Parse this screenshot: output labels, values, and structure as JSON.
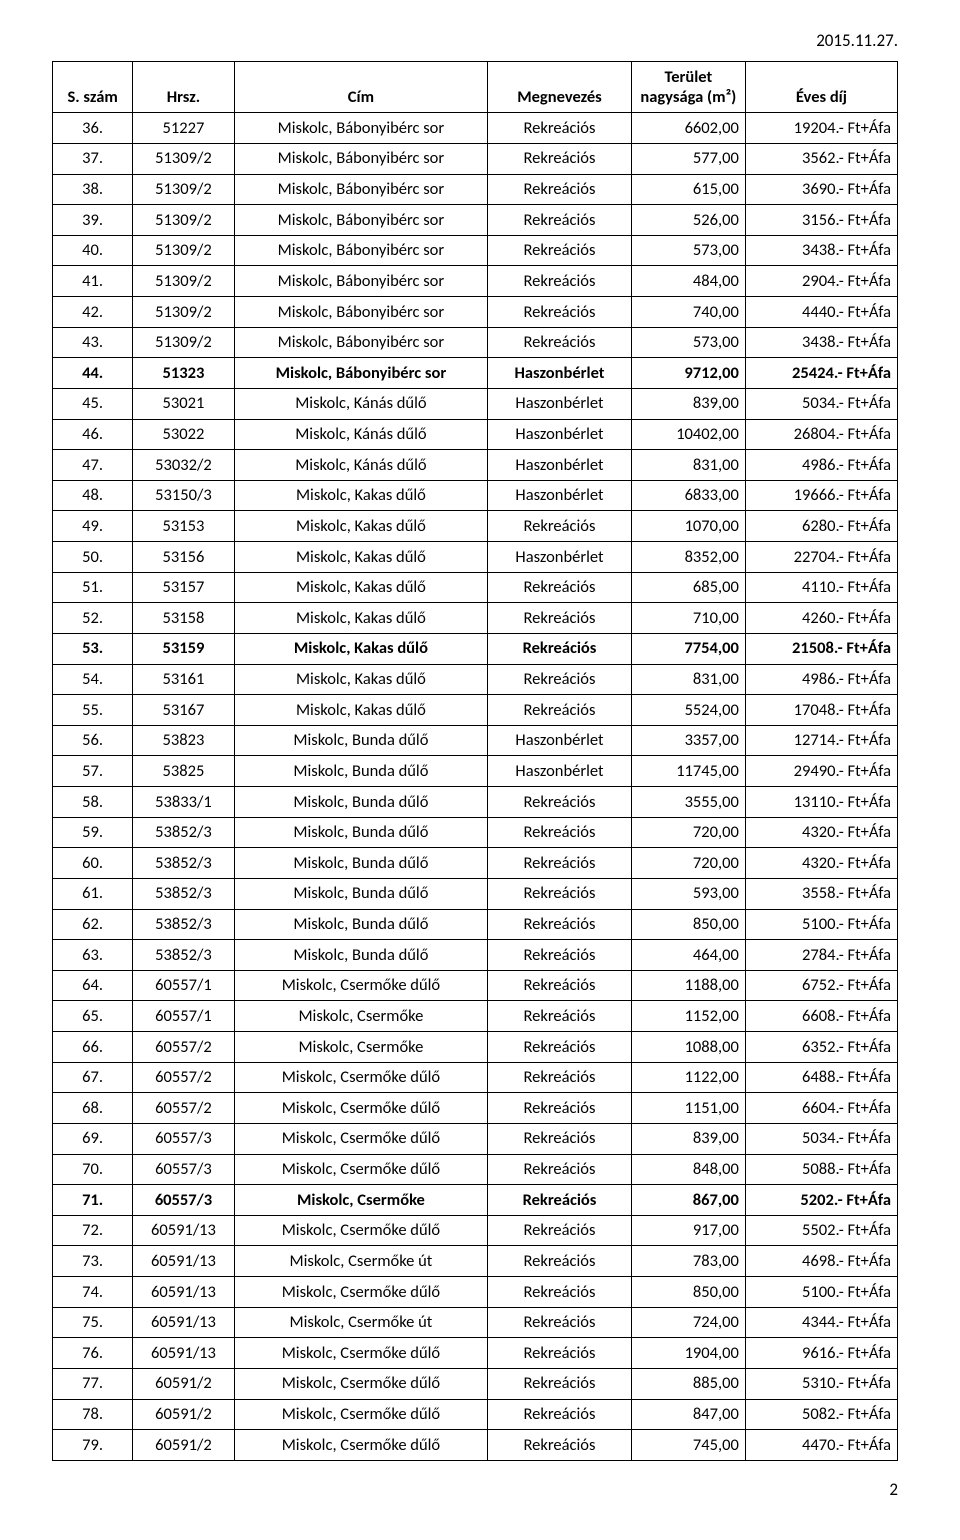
{
  "date_header": "2015.11.27.",
  "page_number": "2",
  "columns": [
    "S. szám",
    "Hrsz.",
    "Cím",
    "Megnevezés",
    "Terület nagysága (m²)",
    "Éves díj"
  ],
  "col_align": [
    "center",
    "center",
    "center",
    "center",
    "right",
    "right"
  ],
  "bold_rows": [
    44,
    53,
    71
  ],
  "rows": [
    [
      "36.",
      "51227",
      "Miskolc, Bábonyibérc sor",
      "Rekreációs",
      "6602,00",
      "19204.- Ft+Áfa"
    ],
    [
      "37.",
      "51309/2",
      "Miskolc, Bábonyibérc sor",
      "Rekreációs",
      "577,00",
      "3562.- Ft+Áfa"
    ],
    [
      "38.",
      "51309/2",
      "Miskolc, Bábonyibérc sor",
      "Rekreációs",
      "615,00",
      "3690.- Ft+Áfa"
    ],
    [
      "39.",
      "51309/2",
      "Miskolc, Bábonyibérc sor",
      "Rekreációs",
      "526,00",
      "3156.- Ft+Áfa"
    ],
    [
      "40.",
      "51309/2",
      "Miskolc, Bábonyibérc sor",
      "Rekreációs",
      "573,00",
      "3438.- Ft+Áfa"
    ],
    [
      "41.",
      "51309/2",
      "Miskolc, Bábonyibérc sor",
      "Rekreációs",
      "484,00",
      "2904.- Ft+Áfa"
    ],
    [
      "42.",
      "51309/2",
      "Miskolc, Bábonyibérc sor",
      "Rekreációs",
      "740,00",
      "4440.- Ft+Áfa"
    ],
    [
      "43.",
      "51309/2",
      "Miskolc, Bábonyibérc sor",
      "Rekreációs",
      "573,00",
      "3438.- Ft+Áfa"
    ],
    [
      "44.",
      "51323",
      "Miskolc, Bábonyibérc sor",
      "Haszonbérlet",
      "9712,00",
      "25424.- Ft+Áfa"
    ],
    [
      "45.",
      "53021",
      "Miskolc, Kánás dűlő",
      "Haszonbérlet",
      "839,00",
      "5034.- Ft+Áfa"
    ],
    [
      "46.",
      "53022",
      "Miskolc, Kánás dűlő",
      "Haszonbérlet",
      "10402,00",
      "26804.- Ft+Áfa"
    ],
    [
      "47.",
      "53032/2",
      "Miskolc, Kánás dűlő",
      "Haszonbérlet",
      "831,00",
      "4986.- Ft+Áfa"
    ],
    [
      "48.",
      "53150/3",
      "Miskolc, Kakas dűlő",
      "Haszonbérlet",
      "6833,00",
      "19666.- Ft+Áfa"
    ],
    [
      "49.",
      "53153",
      "Miskolc, Kakas dűlő",
      "Rekreációs",
      "1070,00",
      "6280.- Ft+Áfa"
    ],
    [
      "50.",
      "53156",
      "Miskolc, Kakas dűlő",
      "Haszonbérlet",
      "8352,00",
      "22704.- Ft+Áfa"
    ],
    [
      "51.",
      "53157",
      "Miskolc, Kakas dűlő",
      "Rekreációs",
      "685,00",
      "4110.- Ft+Áfa"
    ],
    [
      "52.",
      "53158",
      "Miskolc, Kakas dűlő",
      "Rekreációs",
      "710,00",
      "4260.- Ft+Áfa"
    ],
    [
      "53.",
      "53159",
      "Miskolc, Kakas dűlő",
      "Rekreációs",
      "7754,00",
      "21508.- Ft+Áfa"
    ],
    [
      "54.",
      "53161",
      "Miskolc, Kakas dűlő",
      "Rekreációs",
      "831,00",
      "4986.- Ft+Áfa"
    ],
    [
      "55.",
      "53167",
      "Miskolc, Kakas dűlő",
      "Rekreációs",
      "5524,00",
      "17048.- Ft+Áfa"
    ],
    [
      "56.",
      "53823",
      "Miskolc, Bunda dűlő",
      "Haszonbérlet",
      "3357,00",
      "12714.- Ft+Áfa"
    ],
    [
      "57.",
      "53825",
      "Miskolc, Bunda dűlő",
      "Haszonbérlet",
      "11745,00",
      "29490.- Ft+Áfa"
    ],
    [
      "58.",
      "53833/1",
      "Miskolc, Bunda dűlő",
      "Rekreációs",
      "3555,00",
      "13110.- Ft+Áfa"
    ],
    [
      "59.",
      "53852/3",
      "Miskolc, Bunda dűlő",
      "Rekreációs",
      "720,00",
      "4320.- Ft+Áfa"
    ],
    [
      "60.",
      "53852/3",
      "Miskolc, Bunda dűlő",
      "Rekreációs",
      "720,00",
      "4320.- Ft+Áfa"
    ],
    [
      "61.",
      "53852/3",
      "Miskolc, Bunda dűlő",
      "Rekreációs",
      "593,00",
      "3558.- Ft+Áfa"
    ],
    [
      "62.",
      "53852/3",
      "Miskolc, Bunda dűlő",
      "Rekreációs",
      "850,00",
      "5100.- Ft+Áfa"
    ],
    [
      "63.",
      "53852/3",
      "Miskolc, Bunda dűlő",
      "Rekreációs",
      "464,00",
      "2784.- Ft+Áfa"
    ],
    [
      "64.",
      "60557/1",
      "Miskolc, Csermőke dűlő",
      "Rekreációs",
      "1188,00",
      "6752.- Ft+Áfa"
    ],
    [
      "65.",
      "60557/1",
      "Miskolc, Csermőke",
      "Rekreációs",
      "1152,00",
      "6608.- Ft+Áfa"
    ],
    [
      "66.",
      "60557/2",
      "Miskolc, Csermőke",
      "Rekreációs",
      "1088,00",
      "6352.- Ft+Áfa"
    ],
    [
      "67.",
      "60557/2",
      "Miskolc, Csermőke dűlő",
      "Rekreációs",
      "1122,00",
      "6488.- Ft+Áfa"
    ],
    [
      "68.",
      "60557/2",
      "Miskolc, Csermőke dűlő",
      "Rekreációs",
      "1151,00",
      "6604.- Ft+Áfa"
    ],
    [
      "69.",
      "60557/3",
      "Miskolc, Csermőke dűlő",
      "Rekreációs",
      "839,00",
      "5034.- Ft+Áfa"
    ],
    [
      "70.",
      "60557/3",
      "Miskolc, Csermőke dűlő",
      "Rekreációs",
      "848,00",
      "5088.- Ft+Áfa"
    ],
    [
      "71.",
      "60557/3",
      "Miskolc, Csermőke",
      "Rekreációs",
      "867,00",
      "5202.- Ft+Áfa"
    ],
    [
      "72.",
      "60591/13",
      "Miskolc, Csermőke dűlő",
      "Rekreációs",
      "917,00",
      "5502.- Ft+Áfa"
    ],
    [
      "73.",
      "60591/13",
      "Miskolc, Csermőke út",
      "Rekreációs",
      "783,00",
      "4698.- Ft+Áfa"
    ],
    [
      "74.",
      "60591/13",
      "Miskolc, Csermőke dűlő",
      "Rekreációs",
      "850,00",
      "5100.- Ft+Áfa"
    ],
    [
      "75.",
      "60591/13",
      "Miskolc, Csermőke út",
      "Rekreációs",
      "724,00",
      "4344.- Ft+Áfa"
    ],
    [
      "76.",
      "60591/13",
      "Miskolc, Csermőke dűlő",
      "Rekreációs",
      "1904,00",
      "9616.- Ft+Áfa"
    ],
    [
      "77.",
      "60591/2",
      "Miskolc, Csermőke dűlő",
      "Rekreációs",
      "885,00",
      "5310.- Ft+Áfa"
    ],
    [
      "78.",
      "60591/2",
      "Miskolc, Csermőke dűlő",
      "Rekreációs",
      "847,00",
      "5082.- Ft+Áfa"
    ],
    [
      "79.",
      "60591/2",
      "Miskolc, Csermőke dűlő",
      "Rekreációs",
      "745,00",
      "4470.- Ft+Áfa"
    ]
  ],
  "table_style": {
    "border_color": "#000000",
    "background_color": "#ffffff",
    "font_family": "Calibri",
    "header_fontsize_pt": 12,
    "body_fontsize_pt": 12
  }
}
